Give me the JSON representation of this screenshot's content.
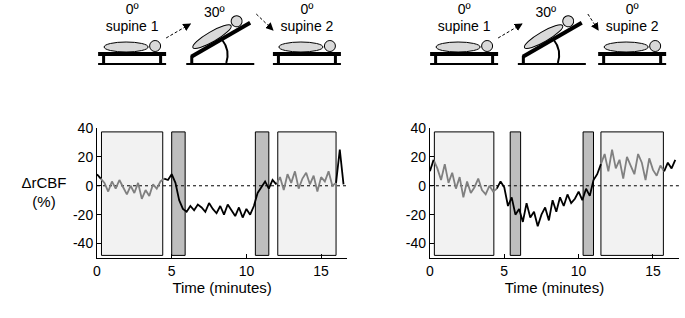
{
  "chart_data": [
    {
      "type": "line",
      "x_label": "Time (minutes)",
      "y_label": "ΔrCBF (%)",
      "x": [
        0,
        0.25,
        0.5,
        0.75,
        1,
        1.25,
        1.5,
        1.75,
        2,
        2.25,
        2.5,
        2.75,
        3,
        3.25,
        3.5,
        3.75,
        4,
        4.25,
        4.5,
        4.75,
        5,
        5.25,
        5.5,
        5.75,
        6,
        6.25,
        6.5,
        6.75,
        7,
        7.25,
        7.5,
        7.75,
        8,
        8.25,
        8.5,
        8.75,
        9,
        9.25,
        9.5,
        9.75,
        10,
        10.25,
        10.5,
        10.75,
        11,
        11.25,
        11.5,
        11.75,
        12,
        12.25,
        12.5,
        12.75,
        13,
        13.25,
        13.5,
        13.75,
        14,
        14.25,
        14.5,
        14.75,
        15,
        15.25,
        15.5,
        15.75,
        16,
        16.25,
        16.5
      ],
      "series": [
        {
          "color": "#808080",
          "values": [
            null,
            5,
            2,
            -4,
            3,
            -2,
            4,
            -1,
            -6,
            0,
            -5,
            2,
            -9,
            -3,
            -7,
            1,
            -2,
            3,
            5,
            null,
            null,
            null,
            null,
            null,
            null,
            null,
            null,
            null,
            null,
            null,
            null,
            null,
            null,
            null,
            null,
            null,
            null,
            null,
            null,
            null,
            null,
            null,
            null,
            null,
            null,
            null,
            null,
            null,
            1,
            6,
            -3,
            8,
            2,
            10,
            -2,
            5,
            9,
            1,
            7,
            -4,
            6,
            3,
            10,
            0,
            2,
            null,
            null
          ]
        },
        {
          "color": "#000000",
          "values": [
            8,
            5,
            null,
            null,
            null,
            null,
            null,
            null,
            null,
            null,
            null,
            null,
            null,
            null,
            null,
            null,
            null,
            null,
            5,
            4,
            8,
            2,
            -10,
            -16,
            -18,
            -14,
            -17,
            -13,
            -15,
            -18,
            -12,
            -16,
            -19,
            -14,
            -20,
            -13,
            -17,
            -21,
            -15,
            -22,
            -16,
            -20,
            -14,
            -5,
            -1,
            3,
            -2,
            4,
            1,
            null,
            null,
            null,
            null,
            null,
            null,
            null,
            null,
            null,
            null,
            null,
            null,
            null,
            null,
            null,
            2,
            25,
            1
          ]
        }
      ],
      "xlim": [
        0,
        16.75
      ],
      "xticks": [
        0,
        5,
        10,
        15
      ],
      "ylim": [
        -50,
        40
      ],
      "yticks": [
        -40,
        -20,
        0,
        20,
        40
      ],
      "grid": false,
      "reference_y": 0,
      "regions": [
        {
          "start": 0.3,
          "end": 4.4,
          "color": "#f2f2f2"
        },
        {
          "start": 5.0,
          "end": 5.9,
          "color": "#bebebe"
        },
        {
          "start": 10.6,
          "end": 11.5,
          "color": "#bebebe"
        },
        {
          "start": 12.1,
          "end": 16.0,
          "color": "#f2f2f2"
        }
      ],
      "phases": [
        {
          "angle": "0º",
          "name": "supine 1"
        },
        {
          "angle": "30º"
        },
        {
          "angle": "0º",
          "name": "supine 2"
        }
      ]
    },
    {
      "type": "line",
      "x_label": "Time (minutes)",
      "x": [
        0,
        0.25,
        0.5,
        0.75,
        1,
        1.25,
        1.5,
        1.75,
        2,
        2.25,
        2.5,
        2.75,
        3,
        3.25,
        3.5,
        3.75,
        4,
        4.25,
        4.5,
        4.75,
        5,
        5.25,
        5.5,
        5.75,
        6,
        6.25,
        6.5,
        6.75,
        7,
        7.25,
        7.5,
        7.75,
        8,
        8.25,
        8.5,
        8.75,
        9,
        9.25,
        9.5,
        9.75,
        10,
        10.25,
        10.5,
        10.75,
        11,
        11.25,
        11.5,
        11.75,
        12,
        12.25,
        12.5,
        12.75,
        13,
        13.25,
        13.5,
        13.75,
        14,
        14.25,
        14.5,
        14.75,
        15,
        15.25,
        15.5,
        15.75,
        16,
        16.25,
        16.5
      ],
      "series": [
        {
          "color": "#808080",
          "values": [
            null,
            18,
            12,
            4,
            15,
            2,
            9,
            -2,
            6,
            -8,
            3,
            -5,
            -1,
            5,
            -3,
            -6,
            0,
            -4,
            -2,
            null,
            null,
            null,
            null,
            null,
            null,
            null,
            null,
            null,
            null,
            null,
            null,
            null,
            null,
            null,
            null,
            null,
            null,
            null,
            null,
            null,
            null,
            null,
            null,
            null,
            null,
            null,
            15,
            22,
            10,
            25,
            12,
            18,
            5,
            20,
            14,
            8,
            22,
            16,
            4,
            19,
            11,
            7,
            14,
            10,
            null,
            null,
            null
          ]
        },
        {
          "color": "#000000",
          "values": [
            10,
            18,
            null,
            null,
            null,
            null,
            null,
            null,
            null,
            null,
            null,
            null,
            null,
            null,
            null,
            null,
            null,
            null,
            -2,
            3,
            -1,
            -14,
            -8,
            -20,
            -16,
            -25,
            -12,
            -22,
            -18,
            -28,
            -20,
            -15,
            -24,
            -10,
            -18,
            -8,
            -14,
            -6,
            -12,
            -9,
            -4,
            -10,
            -2,
            -7,
            4,
            8,
            15,
            null,
            null,
            null,
            null,
            null,
            null,
            null,
            null,
            null,
            null,
            null,
            null,
            null,
            null,
            null,
            null,
            10,
            16,
            12,
            18
          ]
        }
      ],
      "xlim": [
        0,
        16.75
      ],
      "xticks": [
        0,
        5,
        10,
        15
      ],
      "ylim": [
        -50,
        40
      ],
      "yticks": [
        -40,
        -20,
        0,
        20,
        40
      ],
      "grid": false,
      "reference_y": 0,
      "regions": [
        {
          "start": 0.3,
          "end": 4.3,
          "color": "#f2f2f2"
        },
        {
          "start": 5.4,
          "end": 6.1,
          "color": "#bebebe"
        },
        {
          "start": 10.3,
          "end": 11.0,
          "color": "#bebebe"
        },
        {
          "start": 11.5,
          "end": 15.7,
          "color": "#f2f2f2"
        }
      ],
      "phases": [
        {
          "angle": "0º",
          "name": "supine 1"
        },
        {
          "angle": "30º"
        },
        {
          "angle": "0º",
          "name": "supine 2"
        }
      ]
    }
  ]
}
